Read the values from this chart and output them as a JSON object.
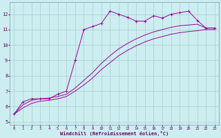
{
  "bg_color": "#cceef0",
  "grid_color": "#aacccc",
  "line_color": "#990099",
  "xlabel": "Windchill (Refroidissement éolien,°C)",
  "xlim": [
    -0.5,
    23.5
  ],
  "ylim": [
    4.8,
    12.8
  ],
  "yticks": [
    5,
    6,
    7,
    8,
    9,
    10,
    11,
    12
  ],
  "xticks": [
    0,
    1,
    2,
    3,
    4,
    5,
    6,
    7,
    8,
    9,
    10,
    11,
    12,
    13,
    14,
    15,
    16,
    17,
    18,
    19,
    20,
    21,
    22,
    23
  ],
  "series": [
    {
      "x": [
        0,
        1,
        2,
        3,
        4,
        5,
        6,
        7,
        8,
        9,
        10,
        11,
        12,
        13,
        14,
        15,
        16,
        17,
        18,
        19,
        20,
        21,
        22,
        23
      ],
      "y": [
        5.5,
        6.3,
        6.5,
        6.5,
        6.5,
        6.8,
        7.0,
        9.0,
        11.0,
        11.2,
        11.4,
        12.2,
        12.0,
        11.8,
        11.55,
        11.55,
        11.9,
        11.75,
        12.0,
        12.1,
        12.2,
        11.6,
        11.1,
        11.1
      ],
      "marker": "+"
    },
    {
      "x": [
        0,
        1,
        2,
        3,
        4,
        5,
        6,
        7,
        8,
        9,
        10,
        11,
        12,
        13,
        14,
        15,
        16,
        17,
        18,
        19,
        20,
        21,
        22,
        23
      ],
      "y": [
        5.5,
        6.1,
        6.4,
        6.5,
        6.55,
        6.65,
        6.8,
        7.2,
        7.7,
        8.2,
        8.8,
        9.3,
        9.75,
        10.1,
        10.4,
        10.65,
        10.85,
        11.0,
        11.15,
        11.25,
        11.3,
        11.35,
        11.1,
        11.1
      ],
      "marker": null
    },
    {
      "x": [
        0,
        1,
        2,
        3,
        4,
        5,
        6,
        7,
        8,
        9,
        10,
        11,
        12,
        13,
        14,
        15,
        16,
        17,
        18,
        19,
        20,
        21,
        22,
        23
      ],
      "y": [
        5.5,
        5.9,
        6.2,
        6.35,
        6.4,
        6.5,
        6.65,
        7.0,
        7.4,
        7.85,
        8.4,
        8.85,
        9.3,
        9.65,
        9.95,
        10.2,
        10.4,
        10.55,
        10.7,
        10.8,
        10.87,
        10.93,
        11.0,
        11.0
      ],
      "marker": null
    }
  ]
}
